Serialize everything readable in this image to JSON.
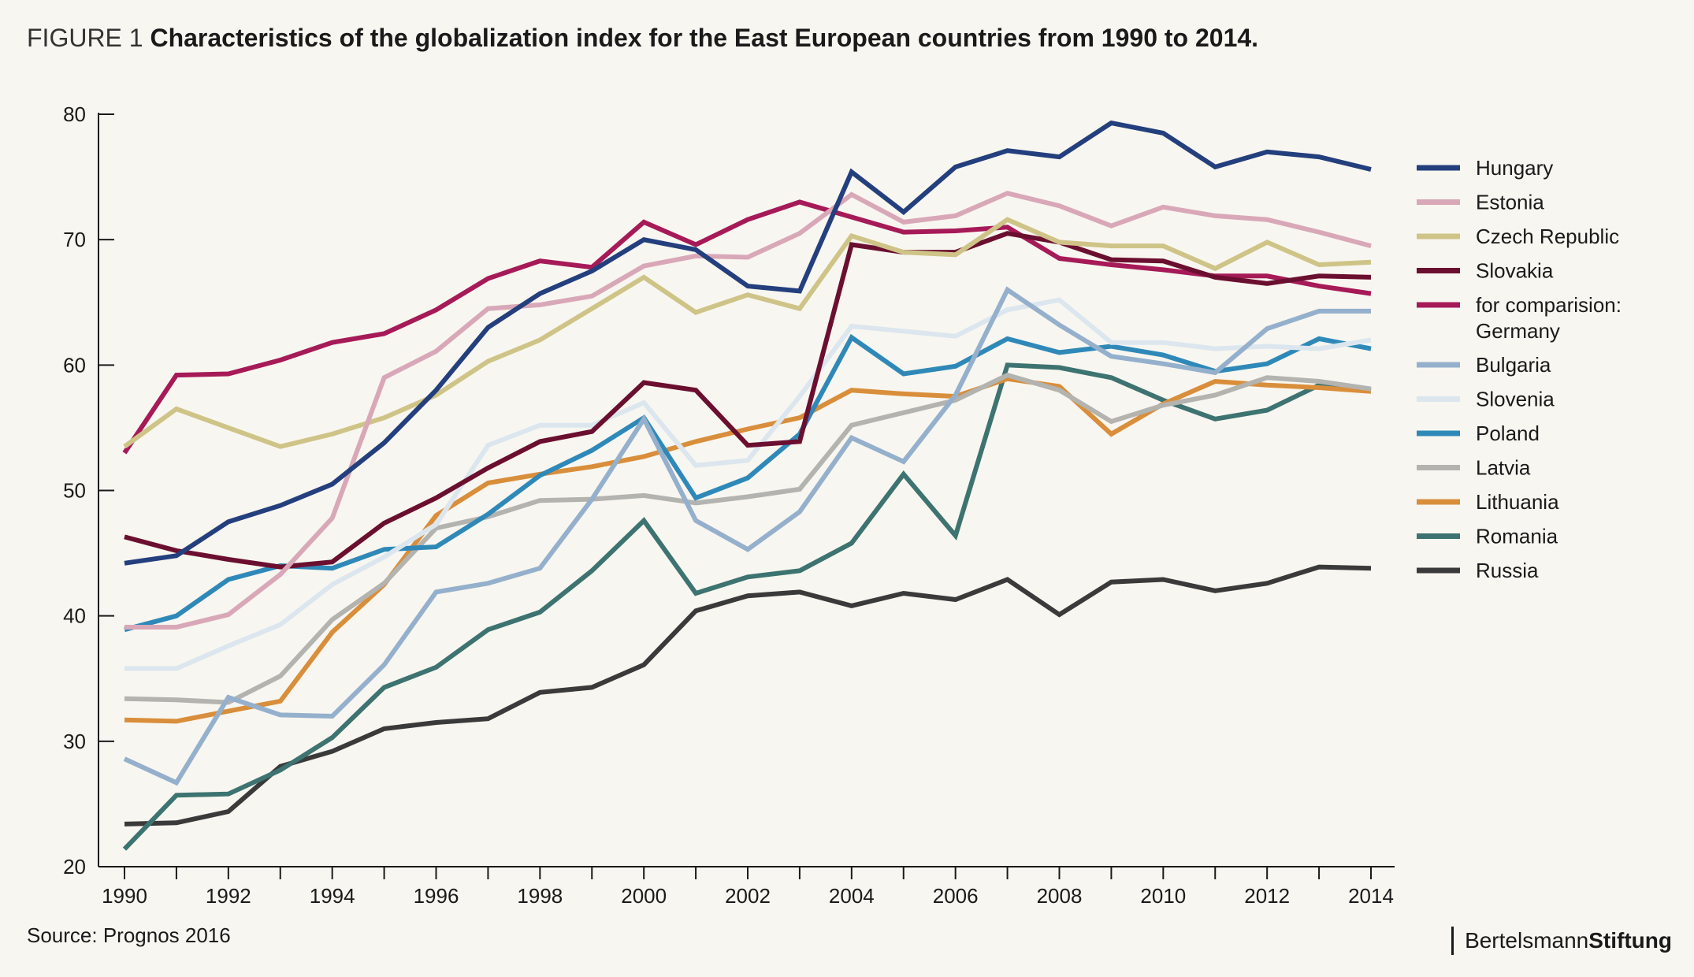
{
  "title": {
    "prefix": "FIGURE 1",
    "text": "Characteristics of the globalization index for the East European countries from 1990 to 2014."
  },
  "source": "Source: Prognos 2016",
  "brand": {
    "part1": "Bertelsmann",
    "part2": "Stiftung"
  },
  "chart_data": {
    "type": "line",
    "title": "Characteristics of the globalization index for the East European countries from 1990 to 2014.",
    "xlabel": "",
    "ylabel": "",
    "x": [
      1990,
      1991,
      1992,
      1993,
      1994,
      1995,
      1996,
      1997,
      1998,
      1999,
      2000,
      2001,
      2002,
      2003,
      2004,
      2005,
      2006,
      2007,
      2008,
      2009,
      2010,
      2011,
      2012,
      2013,
      2014
    ],
    "xticks": [
      "1990",
      "1992",
      "1994",
      "1996",
      "1998",
      "2000",
      "2002",
      "2004",
      "2006",
      "2008",
      "2010",
      "2012",
      "2014"
    ],
    "ylim": [
      20,
      80
    ],
    "yticks": [
      "20",
      "30",
      "40",
      "50",
      "60",
      "70",
      "80"
    ],
    "grid": false,
    "legend_position": "right",
    "series": [
      {
        "name": "Russia",
        "color": "#3a3a3a",
        "values": [
          23.4,
          23.5,
          24.4,
          28.0,
          29.2,
          31.0,
          31.5,
          31.8,
          33.9,
          34.3,
          36.1,
          40.4,
          41.6,
          41.9,
          40.8,
          41.8,
          41.3,
          42.9,
          40.1,
          42.7,
          42.9,
          42.0,
          42.6,
          43.9,
          43.8
        ]
      },
      {
        "name": "Romania",
        "color": "#3d7370",
        "values": [
          21.4,
          25.7,
          25.8,
          27.7,
          30.3,
          34.3,
          35.9,
          38.9,
          40.3,
          43.6,
          47.6,
          41.8,
          43.1,
          43.6,
          45.8,
          51.3,
          46.4,
          60.0,
          59.8,
          59.0,
          57.2,
          55.7,
          56.4,
          58.4,
          58.0
        ]
      },
      {
        "name": "Lithuania",
        "color": "#d98e3b",
        "values": [
          31.7,
          31.6,
          32.4,
          33.2,
          38.7,
          42.5,
          48.0,
          50.6,
          51.3,
          51.9,
          52.7,
          53.9,
          54.9,
          55.8,
          58.0,
          57.7,
          57.5,
          58.9,
          58.3,
          54.5,
          56.9,
          58.7,
          58.4,
          58.2,
          57.9
        ]
      },
      {
        "name": "Latvia",
        "color": "#b3b3b0",
        "values": [
          33.4,
          33.3,
          33.1,
          35.2,
          39.7,
          42.6,
          47.0,
          47.9,
          49.2,
          49.3,
          49.6,
          49.0,
          49.5,
          50.1,
          55.2,
          56.2,
          57.2,
          59.2,
          58.0,
          55.5,
          56.8,
          57.6,
          59.0,
          58.7,
          58.1
        ]
      },
      {
        "name": "Poland",
        "color": "#2f89b8",
        "values": [
          38.9,
          40.0,
          42.9,
          44.0,
          43.8,
          45.3,
          45.5,
          48.1,
          51.2,
          53.2,
          55.8,
          49.4,
          51.0,
          54.5,
          62.2,
          59.3,
          59.9,
          62.1,
          61.0,
          61.5,
          60.8,
          59.5,
          60.1,
          62.1,
          61.3
        ]
      },
      {
        "name": "Slovenia",
        "color": "#dce6ef",
        "values": [
          35.8,
          35.8,
          37.6,
          39.3,
          42.5,
          44.7,
          47.3,
          53.6,
          55.2,
          55.2,
          57.0,
          52.0,
          52.4,
          57.5,
          63.1,
          62.7,
          62.3,
          64.4,
          65.2,
          61.8,
          61.8,
          61.3,
          61.5,
          61.3,
          62.0
        ]
      },
      {
        "name": "Bulgaria",
        "color": "#94b0cc",
        "values": [
          28.6,
          26.7,
          33.5,
          32.1,
          32.0,
          36.1,
          41.9,
          42.6,
          43.8,
          49.3,
          55.7,
          47.6,
          45.3,
          48.3,
          54.2,
          52.3,
          57.6,
          66.0,
          63.2,
          60.7,
          60.1,
          59.4,
          62.9,
          64.3,
          64.3
        ]
      },
      {
        "name": "for comparision:\nGermany",
        "color": "#a61a58",
        "values": [
          53.0,
          59.2,
          59.3,
          60.4,
          61.8,
          62.5,
          64.4,
          66.9,
          68.3,
          67.8,
          71.4,
          69.6,
          71.6,
          73.0,
          71.8,
          70.6,
          70.7,
          71.0,
          68.5,
          68.0,
          67.6,
          67.1,
          67.1,
          66.3,
          65.7
        ]
      },
      {
        "name": "Slovakia",
        "color": "#6b0f30",
        "values": [
          46.3,
          45.2,
          44.5,
          43.9,
          44.3,
          47.4,
          49.4,
          51.8,
          53.9,
          54.7,
          58.6,
          58.0,
          53.6,
          53.9,
          69.6,
          69.0,
          69.0,
          70.5,
          69.8,
          68.4,
          68.3,
          67.0,
          66.5,
          67.1,
          67.0
        ]
      },
      {
        "name": "Czech Republic",
        "color": "#cfc487",
        "values": [
          53.5,
          56.5,
          55.0,
          53.5,
          54.5,
          55.8,
          57.6,
          60.3,
          62.0,
          64.5,
          67.0,
          64.2,
          65.6,
          64.5,
          70.3,
          69.0,
          68.8,
          71.6,
          69.8,
          69.5,
          69.5,
          67.7,
          69.8,
          68.0,
          68.2
        ]
      },
      {
        "name": "Estonia",
        "color": "#d9a8b8",
        "values": [
          39.1,
          39.1,
          40.1,
          43.3,
          47.8,
          59.0,
          61.1,
          64.5,
          64.8,
          65.5,
          67.9,
          68.7,
          68.6,
          70.5,
          73.6,
          71.4,
          71.9,
          73.7,
          72.7,
          71.1,
          72.6,
          71.9,
          71.6,
          70.6,
          69.5
        ]
      },
      {
        "name": "Hungary",
        "color": "#233f7d",
        "values": [
          44.2,
          44.8,
          47.5,
          48.8,
          50.5,
          53.8,
          58.0,
          63.0,
          65.7,
          67.5,
          70.0,
          69.2,
          66.3,
          65.9,
          75.4,
          72.2,
          75.8,
          77.1,
          76.6,
          79.3,
          78.5,
          75.8,
          77.0,
          76.6,
          75.6
        ]
      }
    ],
    "legend_order": [
      "Hungary",
      "Estonia",
      "Czech Republic",
      "Slovakia",
      "for comparision:\nGermany",
      "Bulgaria",
      "Slovenia",
      "Poland",
      "Latvia",
      "Lithuania",
      "Romania",
      "Russia"
    ]
  }
}
